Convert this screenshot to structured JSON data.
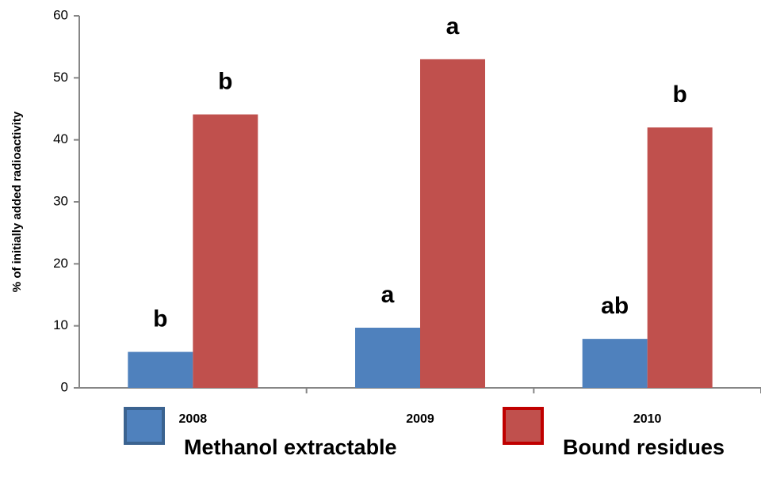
{
  "chart_data": {
    "type": "bar",
    "y_label": "% of initially  added  radioactivity",
    "categories": [
      "2008",
      "2009",
      "2010"
    ],
    "series": [
      {
        "name": "Methanol extractable",
        "color": "#4f81bd",
        "values": [
          5.8,
          9.7,
          7.9
        ],
        "significance_labels": [
          "b",
          "a",
          "ab"
        ]
      },
      {
        "name": "Bound residues",
        "color": "#c0504d",
        "values": [
          44.1,
          53,
          42
        ],
        "significance_labels": [
          "b",
          "a",
          "b"
        ]
      }
    ],
    "ylim": [
      0,
      60
    ],
    "yticks": [
      0,
      10,
      20,
      30,
      40,
      50,
      60
    ],
    "grid": false
  }
}
